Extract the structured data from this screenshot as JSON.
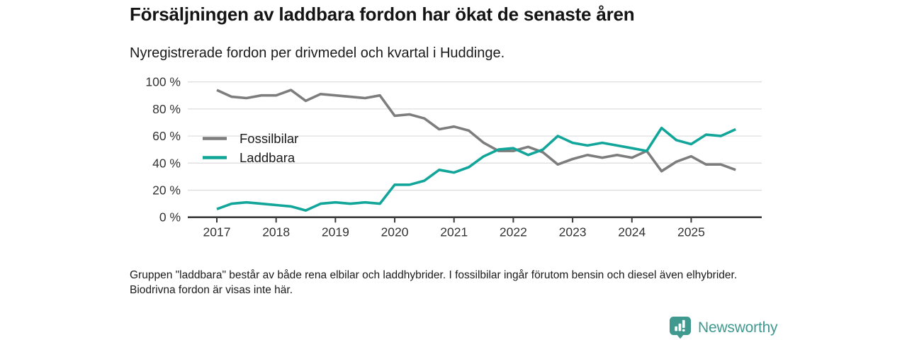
{
  "header": {
    "title": "Försäljningen av laddbara fordon har ökat de senaste åren",
    "subtitle": "Nyregistrerade fordon per drivmedel och kvartal i Huddinge."
  },
  "chart_data": {
    "type": "line",
    "x_quarters": [
      "2017 Q1",
      "2017 Q2",
      "2017 Q3",
      "2017 Q4",
      "2018 Q1",
      "2018 Q2",
      "2018 Q3",
      "2018 Q4",
      "2019 Q1",
      "2019 Q2",
      "2019 Q3",
      "2019 Q4",
      "2020 Q1",
      "2020 Q2",
      "2020 Q3",
      "2020 Q4",
      "2021 Q1",
      "2021 Q2",
      "2021 Q3",
      "2021 Q4",
      "2022 Q1",
      "2022 Q2",
      "2022 Q3",
      "2022 Q4",
      "2023 Q1",
      "2023 Q2",
      "2023 Q3",
      "2023 Q4",
      "2024 Q1",
      "2024 Q2",
      "2024 Q3",
      "2024 Q4",
      "2025 Q1",
      "2025 Q2",
      "2025 Q3",
      "2025 Q4"
    ],
    "series": [
      {
        "name": "Fossilbilar",
        "color": "#7d7d7d",
        "values": [
          94,
          89,
          88,
          90,
          90,
          94,
          86,
          91,
          90,
          89,
          88,
          90,
          75,
          76,
          73,
          65,
          67,
          64,
          55,
          49,
          49,
          52,
          48,
          39,
          43,
          46,
          44,
          46,
          44,
          49,
          34,
          41,
          45,
          39,
          39,
          35
        ]
      },
      {
        "name": "Laddbara",
        "color": "#12a59a",
        "values": [
          6,
          10,
          11,
          10,
          9,
          8,
          5,
          10,
          11,
          10,
          11,
          10,
          24,
          24,
          27,
          35,
          33,
          37,
          45,
          50,
          51,
          46,
          50,
          60,
          55,
          53,
          55,
          53,
          51,
          49,
          66,
          57,
          54,
          61,
          60,
          65
        ]
      }
    ],
    "ylim": [
      0,
      100
    ],
    "yticks": [
      0,
      20,
      40,
      60,
      80,
      100
    ],
    "ytick_suffix": " %",
    "xticks": [
      {
        "label": "2017",
        "q": 0
      },
      {
        "label": "2018",
        "q": 4
      },
      {
        "label": "2019",
        "q": 8
      },
      {
        "label": "2020",
        "q": 12
      },
      {
        "label": "2021",
        "q": 16
      },
      {
        "label": "2022",
        "q": 20
      },
      {
        "label": "2023",
        "q": 24
      },
      {
        "label": "2024",
        "q": 28
      },
      {
        "label": "2025",
        "q": 32
      }
    ],
    "grid": "horizontal",
    "legend_position": "inside-left"
  },
  "footer": {
    "note": "Gruppen \"laddbara\" består av både rena elbilar och laddhybrider. I fossilbilar ingår förutom bensin och diesel även elhybrider. Biodrivna fordon är visas inte här.",
    "brand": "Newsworthy"
  },
  "colors": {
    "fossil_gray": "#7d7d7d",
    "laddbara_teal": "#12a59a",
    "brand_teal": "#3f998f",
    "grid_gray": "#dcdcdc",
    "axis_dark": "#3a3a3a"
  }
}
